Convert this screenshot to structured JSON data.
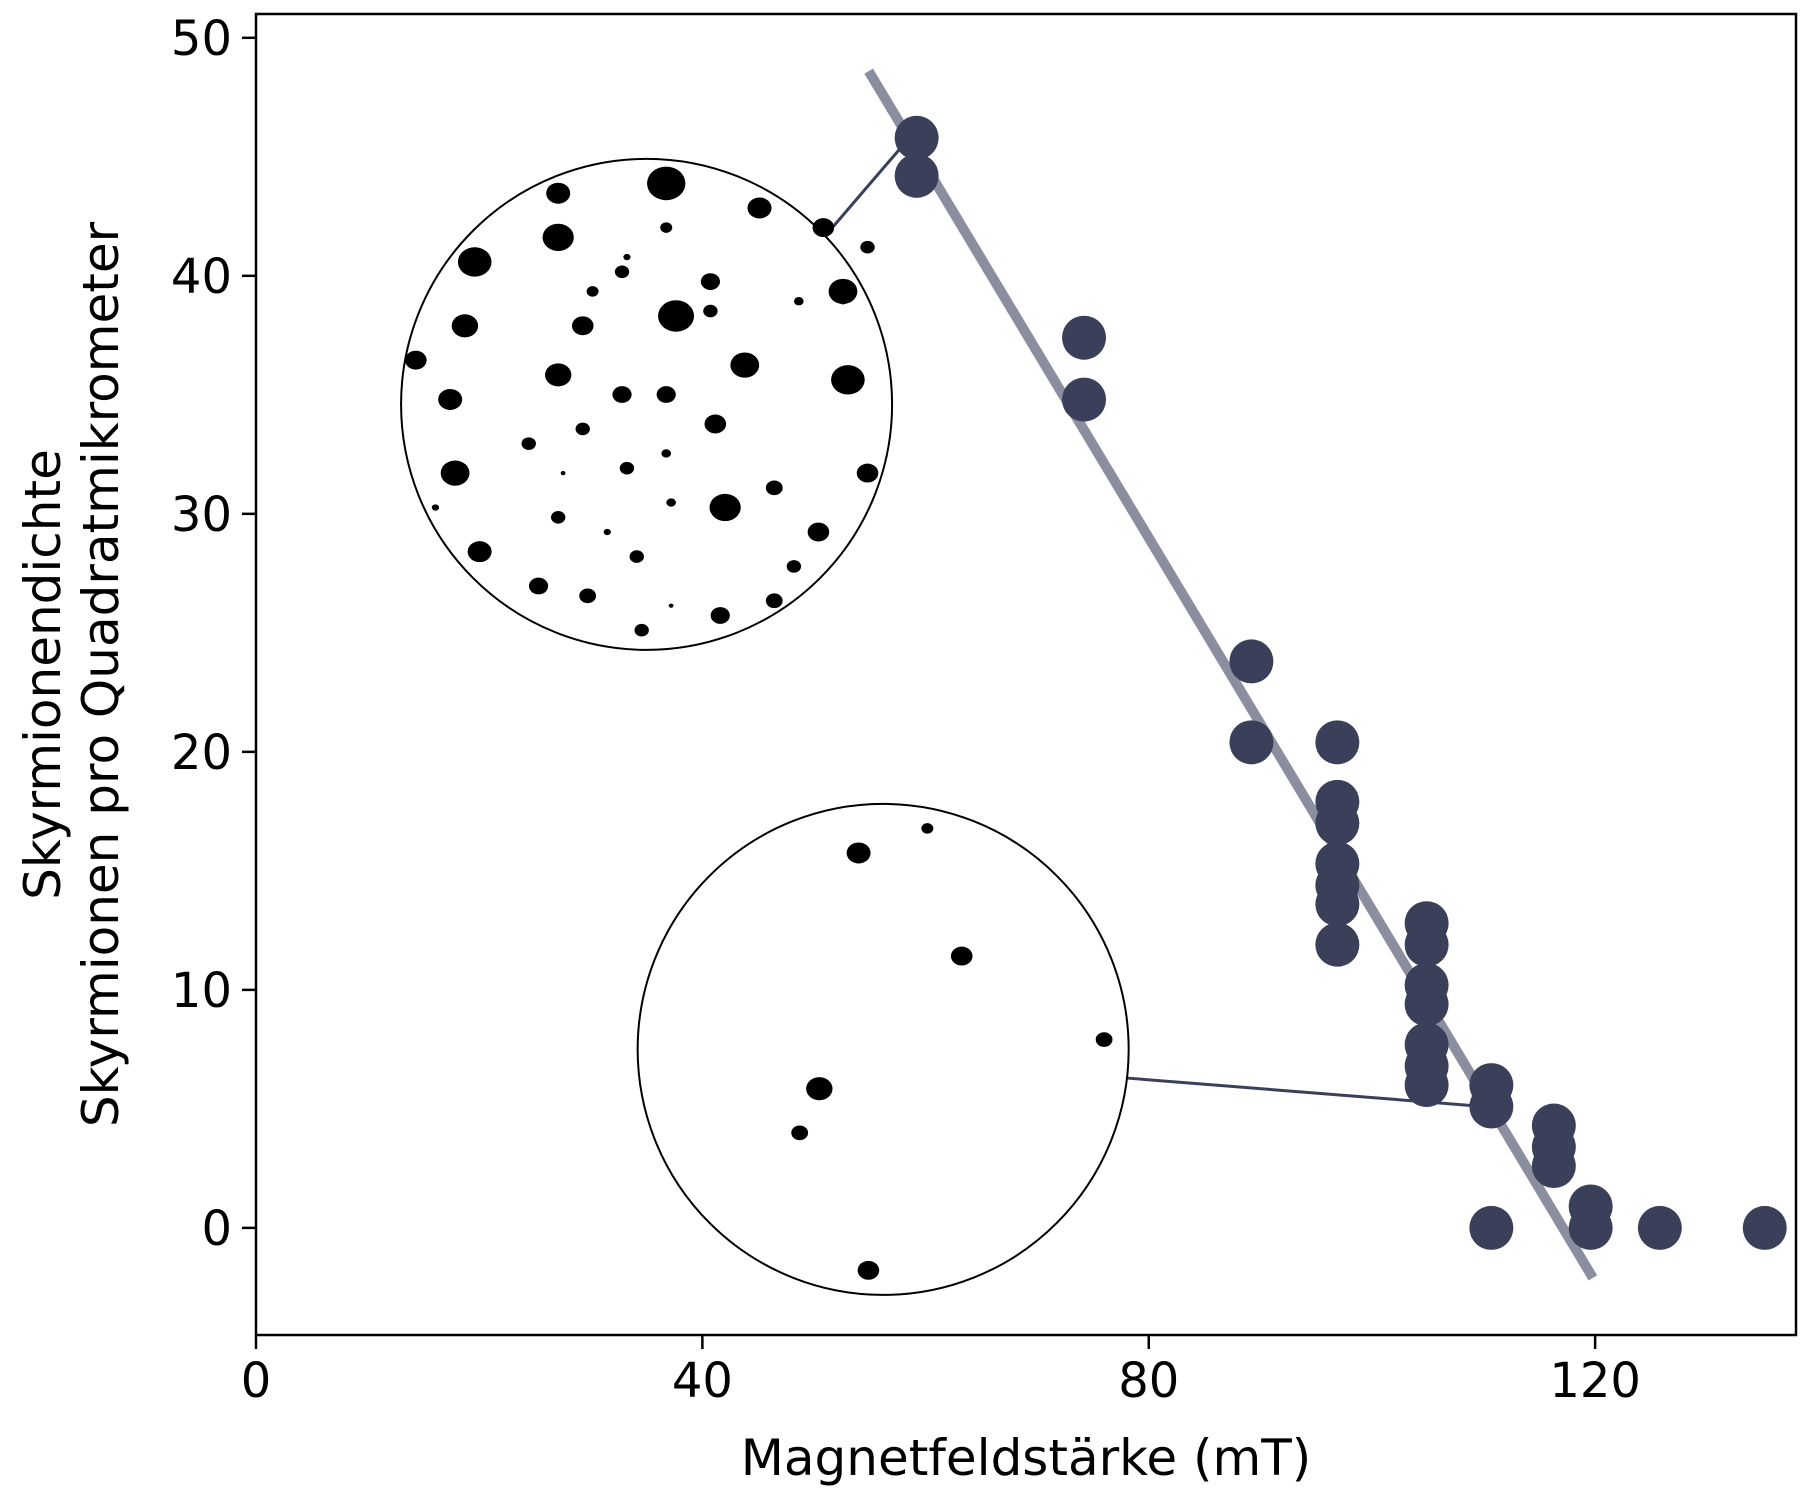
{
  "chart_data": {
    "type": "scatter",
    "xlabel": "Magnetfeldstärke (mT)",
    "ylabel_lines": [
      "Skyrmionendichte",
      "Skyrmionen pro Quadratmikrometer"
    ],
    "xlim": [
      0,
      138
    ],
    "ylim": [
      -4.5,
      51
    ],
    "xticks": [
      0,
      40,
      80,
      120
    ],
    "yticks": [
      0,
      10,
      20,
      30,
      40,
      50
    ],
    "grid": false,
    "colors": {
      "points": "#3a405a",
      "fit_line": "#8a8e9e",
      "frame": "#000000"
    },
    "points": [
      {
        "x": 59.2,
        "y": 45.8
      },
      {
        "x": 59.2,
        "y": 44.2
      },
      {
        "x": 74.2,
        "y": 37.4
      },
      {
        "x": 74.2,
        "y": 34.8
      },
      {
        "x": 89.2,
        "y": 23.8
      },
      {
        "x": 89.2,
        "y": 20.4
      },
      {
        "x": 96.9,
        "y": 20.4
      },
      {
        "x": 96.9,
        "y": 17.9
      },
      {
        "x": 96.9,
        "y": 17.0
      },
      {
        "x": 96.9,
        "y": 15.3
      },
      {
        "x": 96.9,
        "y": 14.4
      },
      {
        "x": 96.9,
        "y": 13.6
      },
      {
        "x": 96.9,
        "y": 11.9
      },
      {
        "x": 104.9,
        "y": 12.8
      },
      {
        "x": 104.9,
        "y": 11.9
      },
      {
        "x": 104.9,
        "y": 10.2
      },
      {
        "x": 104.9,
        "y": 9.4
      },
      {
        "x": 104.9,
        "y": 7.7
      },
      {
        "x": 104.9,
        "y": 6.8
      },
      {
        "x": 104.9,
        "y": 6.0
      },
      {
        "x": 110.7,
        "y": 6.0
      },
      {
        "x": 110.7,
        "y": 5.1
      },
      {
        "x": 110.7,
        "y": 0
      },
      {
        "x": 116.3,
        "y": 4.3
      },
      {
        "x": 116.3,
        "y": 3.4
      },
      {
        "x": 116.3,
        "y": 2.6
      },
      {
        "x": 119.6,
        "y": 0.9
      },
      {
        "x": 119.6,
        "y": 0
      },
      {
        "x": 125.8,
        "y": 0
      },
      {
        "x": 135.2,
        "y": 0
      }
    ],
    "fit_line": {
      "x": [
        54.9,
        119.8
      ],
      "y": [
        48.6,
        -2.1
      ]
    },
    "insets": [
      {
        "name": "inset-high-density",
        "center": {
          "x": 35.0,
          "y": 34.6
        },
        "radius_x": 22.0,
        "connector_to": {
          "x": 58.0,
          "y": 45.5
        },
        "connector_from": {
          "x": 50.5,
          "y": 41.4
        },
        "dots": [
          [
            0.54,
            0.05,
            1.6
          ],
          [
            0.73,
            0.1,
            1.0
          ],
          [
            0.86,
            0.14,
            0.9
          ],
          [
            0.32,
            0.07,
            1.0
          ],
          [
            0.15,
            0.21,
            1.4
          ],
          [
            0.32,
            0.16,
            1.3
          ],
          [
            0.54,
            0.14,
            0.5
          ],
          [
            0.46,
            0.2,
            0.3
          ],
          [
            0.95,
            0.18,
            0.6
          ],
          [
            0.9,
            0.27,
            1.2
          ],
          [
            0.63,
            0.25,
            0.8
          ],
          [
            0.39,
            0.27,
            0.5
          ],
          [
            0.45,
            0.23,
            0.6
          ],
          [
            0.37,
            0.34,
            0.9
          ],
          [
            0.81,
            0.29,
            0.4
          ],
          [
            0.9,
            0.29,
            0.3
          ],
          [
            0.13,
            0.34,
            1.1
          ],
          [
            0.56,
            0.32,
            1.5
          ],
          [
            0.63,
            0.31,
            0.6
          ],
          [
            0.03,
            0.41,
            0.9
          ],
          [
            0.32,
            0.44,
            1.1
          ],
          [
            0.7,
            0.42,
            1.2
          ],
          [
            0.91,
            0.45,
            1.4
          ],
          [
            0.45,
            0.48,
            0.8
          ],
          [
            0.54,
            0.48,
            0.8
          ],
          [
            0.1,
            0.49,
            1.0
          ],
          [
            0.64,
            0.54,
            0.9
          ],
          [
            0.37,
            0.55,
            0.6
          ],
          [
            0.26,
            0.58,
            0.6
          ],
          [
            0.54,
            0.6,
            0.4
          ],
          [
            0.46,
            0.63,
            0.6
          ],
          [
            0.33,
            0.64,
            0.2
          ],
          [
            0.11,
            0.64,
            1.2
          ],
          [
            0.95,
            0.64,
            0.9
          ],
          [
            0.76,
            0.67,
            0.7
          ],
          [
            0.66,
            0.71,
            1.3
          ],
          [
            0.55,
            0.7,
            0.4
          ],
          [
            0.32,
            0.73,
            0.6
          ],
          [
            0.42,
            0.76,
            0.3
          ],
          [
            0.85,
            0.76,
            0.9
          ],
          [
            0.16,
            0.8,
            1.0
          ],
          [
            0.48,
            0.81,
            0.6
          ],
          [
            0.8,
            0.83,
            0.6
          ],
          [
            0.28,
            0.87,
            0.8
          ],
          [
            0.38,
            0.89,
            0.7
          ],
          [
            0.55,
            0.91,
            0.2
          ],
          [
            0.76,
            0.9,
            0.7
          ],
          [
            0.65,
            0.93,
            0.8
          ],
          [
            0.49,
            0.96,
            0.6
          ],
          [
            0.07,
            0.71,
            0.3
          ]
        ]
      },
      {
        "name": "inset-low-density",
        "center": {
          "x": 56.2,
          "y": 7.5
        },
        "radius_x": 22.0,
        "connector_to": {
          "x": 110.0,
          "y": 5.1
        },
        "connector_from": {
          "x": 77.9,
          "y": 6.3
        },
        "dots": [
          [
            0.45,
            0.1,
            1.0
          ],
          [
            0.59,
            0.05,
            0.5
          ],
          [
            0.66,
            0.31,
            0.9
          ],
          [
            0.95,
            0.48,
            0.7
          ],
          [
            0.37,
            0.58,
            1.1
          ],
          [
            0.33,
            0.67,
            0.7
          ],
          [
            0.47,
            0.95,
            0.9
          ]
        ]
      }
    ]
  }
}
